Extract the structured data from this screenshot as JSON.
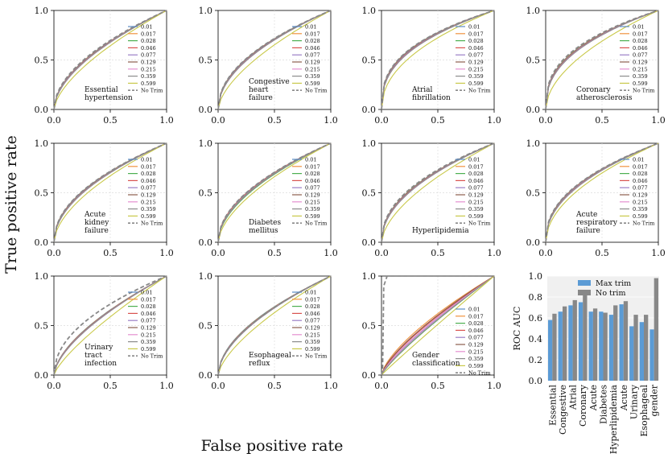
{
  "figure": {
    "ylabel": "True positive rate",
    "xlabel": "False positive rate"
  },
  "colors": {
    "series": [
      "#5b8cc4",
      "#f0923f",
      "#4caf50",
      "#d9534f",
      "#9b7fc6",
      "#8b5e4c",
      "#e58fd0",
      "#8c8c8c",
      "#c9c94a"
    ],
    "no_trim": "#888888",
    "grid": "#dddddd",
    "bar_max": "#5b9bd5",
    "bar_no": "#888888",
    "bar_bg": "#f0f0f0"
  },
  "chart_data": [
    {
      "type": "line",
      "title": "Essential hypertension",
      "label_lines": [
        "Essential",
        "hypertension"
      ],
      "xlim": [
        0,
        1
      ],
      "ylim": [
        0,
        1
      ],
      "xticks": [
        "0.0",
        "0.5",
        "1.0"
      ],
      "yticks": [
        "0.0",
        "0.5",
        "1.0"
      ],
      "legend": [
        "0.01",
        "0.017",
        "0.028",
        "0.046",
        "0.077",
        "0.129",
        "0.215",
        "0.359",
        "0.599",
        "No Trim"
      ],
      "series_shape": [
        0.55,
        0.55,
        0.55,
        0.55,
        0.55,
        0.55,
        0.55,
        0.55,
        0.62,
        0.52
      ]
    },
    {
      "type": "line",
      "title": "Congestive heart failure",
      "label_lines": [
        "Congestive",
        "heart",
        "failure"
      ],
      "xlim": [
        0,
        1
      ],
      "ylim": [
        0,
        1
      ],
      "xticks": [
        "0.0",
        "0.5",
        "1.0"
      ],
      "yticks": [
        "0.0",
        "0.5",
        "1.0"
      ],
      "legend": [
        "0.01",
        "0.017",
        "0.028",
        "0.046",
        "0.077",
        "0.129",
        "0.215",
        "0.359",
        "0.599",
        "No Trim"
      ],
      "series_shape": [
        0.5,
        0.5,
        0.5,
        0.5,
        0.5,
        0.5,
        0.5,
        0.5,
        0.6,
        0.48
      ]
    },
    {
      "type": "line",
      "title": "Atrial fibrillation",
      "label_lines": [
        "Atrial",
        "fibrillation"
      ],
      "xlim": [
        0,
        1
      ],
      "ylim": [
        0,
        1
      ],
      "xticks": [
        "0.0",
        "0.5",
        "1.0"
      ],
      "yticks": [
        "0.0",
        "0.5",
        "1.0"
      ],
      "legend": [
        "0.01",
        "0.017",
        "0.028",
        "0.046",
        "0.077",
        "0.129",
        "0.215",
        "0.359",
        "0.599",
        "No Trim"
      ],
      "series_shape": [
        0.38,
        0.38,
        0.38,
        0.38,
        0.38,
        0.38,
        0.38,
        0.38,
        0.45,
        0.36
      ]
    },
    {
      "type": "line",
      "title": "Coronary atherosclerosis",
      "label_lines": [
        "Coronary",
        "atherosclerosis"
      ],
      "xlim": [
        0,
        1
      ],
      "ylim": [
        0,
        1
      ],
      "xticks": [
        "0.0",
        "0.5",
        "1.0"
      ],
      "yticks": [
        "0.0",
        "0.5",
        "1.0"
      ],
      "legend": [
        "0.01",
        "0.017",
        "0.028",
        "0.046",
        "0.077",
        "0.129",
        "0.215",
        "0.359",
        "0.599",
        "No Trim"
      ],
      "series_shape": [
        0.4,
        0.4,
        0.4,
        0.4,
        0.4,
        0.4,
        0.4,
        0.4,
        0.52,
        0.37
      ]
    },
    {
      "type": "line",
      "title": "Acute kidney failure",
      "label_lines": [
        "Acute",
        "kidney",
        "failure"
      ],
      "xlim": [
        0,
        1
      ],
      "ylim": [
        0,
        1
      ],
      "xticks": [
        "0.0",
        "0.5",
        "1.0"
      ],
      "yticks": [
        "0.0",
        "0.5",
        "1.0"
      ],
      "legend": [
        "0.01",
        "0.017",
        "0.028",
        "0.046",
        "0.077",
        "0.129",
        "0.215",
        "0.359",
        "0.599",
        "No Trim"
      ],
      "series_shape": [
        0.5,
        0.5,
        0.5,
        0.5,
        0.5,
        0.5,
        0.5,
        0.5,
        0.56,
        0.48
      ]
    },
    {
      "type": "line",
      "title": "Diabetes mellitus",
      "label_lines": [
        "Diabetes",
        "mellitus"
      ],
      "xlim": [
        0,
        1
      ],
      "ylim": [
        0,
        1
      ],
      "xticks": [
        "0.0",
        "0.5",
        "1.0"
      ],
      "yticks": [
        "0.0",
        "0.5",
        "1.0"
      ],
      "legend": [
        "0.01",
        "0.017",
        "0.028",
        "0.046",
        "0.077",
        "0.129",
        "0.215",
        "0.359",
        "0.599",
        "No Trim"
      ],
      "series_shape": [
        0.52,
        0.52,
        0.55,
        0.52,
        0.52,
        0.52,
        0.52,
        0.52,
        0.58,
        0.5
      ]
    },
    {
      "type": "line",
      "title": "Hyperlipidemia",
      "label_lines": [
        "Hyperlipidemia"
      ],
      "xlim": [
        0,
        1
      ],
      "ylim": [
        0,
        1
      ],
      "xticks": [
        "0.0",
        "0.5",
        "1.0"
      ],
      "yticks": [
        "0.0",
        "0.5",
        "1.0"
      ],
      "legend": [
        "0.01",
        "0.017",
        "0.028",
        "0.046",
        "0.077",
        "0.129",
        "0.215",
        "0.359",
        "0.599",
        "No Trim"
      ],
      "series_shape": [
        0.48,
        0.48,
        0.48,
        0.48,
        0.48,
        0.48,
        0.48,
        0.48,
        0.58,
        0.45
      ]
    },
    {
      "type": "line",
      "title": "Acute respiratory failure",
      "label_lines": [
        "Acute",
        "respiratory",
        "failure"
      ],
      "xlim": [
        0,
        1
      ],
      "ylim": [
        0,
        1
      ],
      "xticks": [
        "0.0",
        "0.5",
        "1.0"
      ],
      "yticks": [
        "0.0",
        "0.5",
        "1.0"
      ],
      "legend": [
        "0.01",
        "0.017",
        "0.028",
        "0.046",
        "0.077",
        "0.129",
        "0.215",
        "0.359",
        "0.599",
        "No Trim"
      ],
      "series_shape": [
        0.45,
        0.45,
        0.45,
        0.45,
        0.45,
        0.45,
        0.45,
        0.45,
        0.5,
        0.43
      ]
    },
    {
      "type": "line",
      "title": "Urinary tract infection",
      "label_lines": [
        "Urinary",
        "tract",
        "infection"
      ],
      "xlim": [
        0,
        1
      ],
      "ylim": [
        0,
        1
      ],
      "xticks": [
        "0.0",
        "0.5",
        "1.0"
      ],
      "yticks": [
        "0.0",
        "0.5",
        "1.0"
      ],
      "legend": [
        "0.01",
        "0.017",
        "0.028",
        "0.046",
        "0.077",
        "0.129",
        "0.215",
        "0.359",
        "0.599",
        "No Trim"
      ],
      "series_shape": [
        0.62,
        0.62,
        0.62,
        0.62,
        0.62,
        0.62,
        0.62,
        0.62,
        0.75,
        0.48
      ]
    },
    {
      "type": "line",
      "title": "Esophageal reflux",
      "label_lines": [
        "Esophageal",
        "reflux"
      ],
      "xlim": [
        0,
        1
      ],
      "ylim": [
        0,
        1
      ],
      "xticks": [
        "0.0",
        "0.5",
        "1.0"
      ],
      "yticks": [
        "0.0",
        "0.5",
        "1.0"
      ],
      "legend": [
        "0.01",
        "0.017",
        "0.028",
        "0.046",
        "0.077",
        "0.129",
        "0.215",
        "0.359",
        "0.599",
        "No Trim"
      ],
      "series_shape": [
        0.55,
        0.55,
        0.55,
        0.55,
        0.55,
        0.55,
        0.55,
        0.55,
        0.65,
        0.55
      ]
    },
    {
      "type": "line",
      "title": "Gender classification",
      "label_lines": [
        "Gender",
        "classification"
      ],
      "xlim": [
        0,
        1
      ],
      "ylim": [
        0,
        1
      ],
      "xticks": [
        "0.0",
        "0.5",
        "1.0"
      ],
      "yticks": [
        "0.0",
        "0.5",
        "1.0"
      ],
      "legend": [
        "0.01",
        "0.017",
        "0.028",
        "0.046",
        "0.077",
        "0.129",
        "0.215",
        "0.359",
        "0.599",
        "No Trim"
      ],
      "series_shape": [
        0.8,
        0.7,
        0.85,
        0.75,
        0.8,
        0.72,
        0.78,
        0.82,
        0.95,
        0.03
      ]
    },
    {
      "type": "bar",
      "ylabel": "ROC AUC",
      "ylim": [
        0,
        1
      ],
      "yticks": [
        "0.0",
        "0.2",
        "0.4",
        "0.6",
        "0.8",
        "1.0"
      ],
      "categories": [
        "Essential",
        "Congestive",
        "Atrial",
        "Coronary",
        "Acute",
        "Diabetes",
        "Hyperlipidemia",
        "Acute",
        "Urinary",
        "Esophageal",
        "gender"
      ],
      "series": [
        {
          "name": "Max trim",
          "values": [
            0.58,
            0.66,
            0.72,
            0.75,
            0.66,
            0.66,
            0.63,
            0.73,
            0.52,
            0.56,
            0.49
          ]
        },
        {
          "name": "No trim",
          "values": [
            0.64,
            0.71,
            0.77,
            0.82,
            0.69,
            0.65,
            0.72,
            0.76,
            0.63,
            0.63,
            0.98
          ]
        }
      ]
    }
  ]
}
